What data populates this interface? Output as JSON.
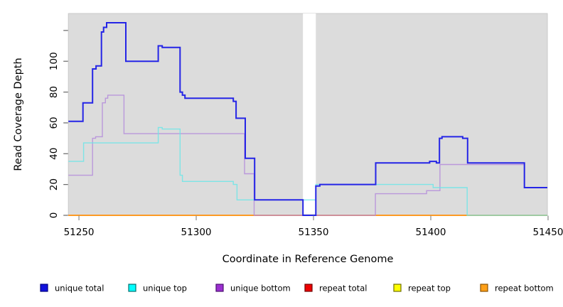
{
  "figure": {
    "background_color": "#ffffff",
    "plot_background_color": "#dcdcdc",
    "plot_border_color": "#c9c9c9",
    "tick_color": "#8a8a8a"
  },
  "x_axis": {
    "label": "Coordinate in Reference Genome",
    "tick_labels": [
      "51250",
      "51300",
      "51350",
      "51400",
      "51450"
    ]
  },
  "y_axis": {
    "label": "Read Coverage Depth",
    "tick_labels": [
      "0",
      "20",
      "40",
      "60",
      "80",
      "100"
    ]
  },
  "legend": {
    "items": [
      {
        "label": "unique total",
        "fill": "#1212dd",
        "border": "#000080"
      },
      {
        "label": "unique top",
        "fill": "#00ffff",
        "border": "#007070"
      },
      {
        "label": "unique bottom",
        "fill": "#9b2fd0",
        "border": "#4b1070"
      },
      {
        "label": "repeat total",
        "fill": "#ee0000",
        "border": "#700000"
      },
      {
        "label": "repeat top",
        "fill": "#ffff00",
        "border": "#6e6e00"
      },
      {
        "label": "repeat bottom",
        "fill": "#ffa018",
        "border": "#8a5200"
      }
    ]
  },
  "chart_data": {
    "type": "line",
    "step_style": "post",
    "title": "",
    "xlabel": "Coordinate in Reference Genome",
    "ylabel": "Read Coverage Depth",
    "xlim": [
      51245.5,
      51449.7
    ],
    "ylim": [
      0,
      131
    ],
    "x_ticks": [
      51250,
      51300,
      51350,
      51400,
      51450
    ],
    "y_ticks": [
      0,
      20,
      40,
      60,
      80,
      100
    ],
    "y_extra_unlabeled_tick": 120,
    "grid": false,
    "legend_position": "bottom",
    "no_data_gap_x": [
      51345.5,
      51351.0
    ],
    "series": [
      {
        "name": "unique_total",
        "label": "unique total",
        "color": "#2525e6",
        "line_width": 2,
        "opacity": 1,
        "points": [
          [
            51245.5,
            61
          ],
          [
            51251.7,
            73
          ],
          [
            51255.8,
            95
          ],
          [
            51257.3,
            97
          ],
          [
            51259.6,
            119
          ],
          [
            51260.5,
            122
          ],
          [
            51261.8,
            125
          ],
          [
            51270.0,
            100
          ],
          [
            51283.8,
            110
          ],
          [
            51285.5,
            109
          ],
          [
            51293.1,
            80
          ],
          [
            51294.1,
            78
          ],
          [
            51295.2,
            76
          ],
          [
            51315.8,
            74
          ],
          [
            51317.0,
            63
          ],
          [
            51320.9,
            37
          ],
          [
            51324.9,
            10
          ],
          [
            51345.5,
            0
          ],
          [
            51351.0,
            19
          ],
          [
            51352.7,
            20
          ],
          [
            51376.5,
            34
          ],
          [
            51399.5,
            35
          ],
          [
            51402.4,
            34
          ],
          [
            51403.7,
            50
          ],
          [
            51404.8,
            51
          ],
          [
            51413.6,
            50
          ],
          [
            51415.7,
            34
          ],
          [
            51439.9,
            18
          ]
        ]
      },
      {
        "name": "unique_top",
        "label": "unique top",
        "color": "#6ce6e8",
        "line_width": 1.4,
        "opacity": 0.85,
        "points": [
          [
            51245.5,
            35
          ],
          [
            51252.0,
            47
          ],
          [
            51283.8,
            57
          ],
          [
            51285.5,
            56
          ],
          [
            51293.1,
            26
          ],
          [
            51294.1,
            22
          ],
          [
            51315.8,
            20
          ],
          [
            51317.4,
            10
          ],
          [
            51351.0,
            20
          ],
          [
            51401.0,
            18
          ],
          [
            51415.5,
            0
          ]
        ]
      },
      {
        "name": "unique_bottom",
        "label": "unique bottom",
        "color": "#b48cdb",
        "line_width": 1.4,
        "opacity": 0.85,
        "points": [
          [
            51245.5,
            26
          ],
          [
            51255.8,
            50
          ],
          [
            51257.1,
            51
          ],
          [
            51260.0,
            73
          ],
          [
            51261.3,
            76
          ],
          [
            51262.3,
            78
          ],
          [
            51269.2,
            53
          ],
          [
            51320.6,
            27
          ],
          [
            51324.7,
            0
          ],
          [
            51376.4,
            14
          ],
          [
            51398.2,
            16
          ],
          [
            51403.9,
            33
          ],
          [
            51439.9,
            18
          ]
        ]
      },
      {
        "name": "repeat_total",
        "label": "repeat total",
        "color": "#e02020",
        "line_width": 1.4,
        "opacity": 1,
        "points": [
          [
            51245.5,
            0
          ]
        ]
      },
      {
        "name": "repeat_top",
        "label": "repeat top",
        "color": "#f5f500",
        "line_width": 1.4,
        "opacity": 1,
        "points": [
          [
            51245.5,
            0
          ]
        ]
      },
      {
        "name": "repeat_bottom",
        "label": "repeat bottom",
        "color": "#ff9d1f",
        "line_width": 1.8,
        "opacity": 1,
        "points": [
          [
            51245.5,
            0
          ]
        ]
      }
    ],
    "draw_order": [
      "repeat_top",
      "repeat_total",
      "repeat_bottom",
      "unique_bottom",
      "unique_top",
      "unique_total"
    ]
  }
}
